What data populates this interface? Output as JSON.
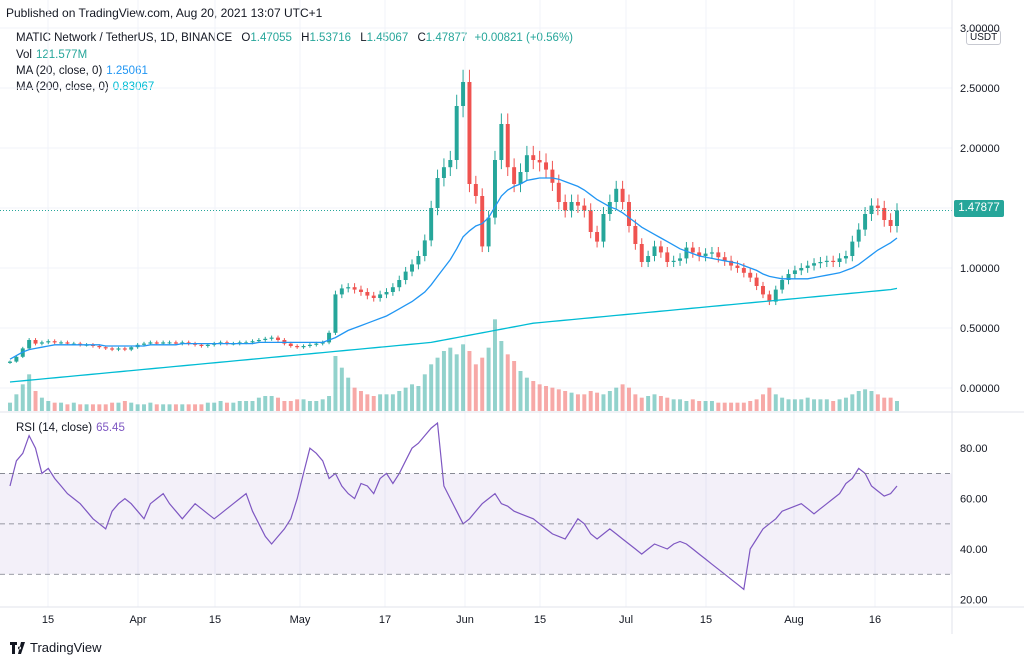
{
  "header": {
    "published": "Published on TradingView.com, Aug 20, 2021 13:07 UTC+1"
  },
  "legend": {
    "symbol": "MATIC Network / TetherUS, 1D, BINANCE",
    "open_label": "O",
    "open": "1.47055",
    "high_label": "H",
    "high": "1.53716",
    "low_label": "L",
    "low": "1.45067",
    "close_label": "C",
    "close": "1.47877",
    "change": "+0.00821 (+0.56%)",
    "vol_label": "Vol",
    "vol": "121.577M",
    "ma20_label": "MA (20, close, 0)",
    "ma20": "1.25061",
    "ma200_label": "MA (200, close, 0)",
    "ma200": "0.83067"
  },
  "rsi_legend": {
    "label": "RSI (14, close)",
    "value": "65.45"
  },
  "price_tag": "1.47877",
  "currency": "USDT",
  "footer": {
    "brand": "TradingView"
  },
  "colors": {
    "up": "#26a69a",
    "down": "#ef5350",
    "ma20": "#2196f3",
    "ma200": "#00bcd4",
    "rsi": "#7e57c2"
  },
  "chart_data": {
    "type": "line",
    "price_axis": {
      "ticks": [
        "3.00000",
        "2.50000",
        "2.00000",
        "1.50000",
        "1.00000",
        "0.50000",
        "0.00000"
      ],
      "range": [
        -0.2,
        3.0
      ]
    },
    "rsi_axis": {
      "ticks": [
        "80.00",
        "60.00",
        "40.00",
        "20.00"
      ],
      "range": [
        17,
        92
      ],
      "bands": [
        30,
        50,
        70
      ]
    },
    "x_labels": [
      "15",
      "Apr",
      "15",
      "May",
      "17",
      "Jun",
      "15",
      "Jul",
      "15",
      "Aug",
      "16"
    ],
    "candles_close": [
      0.22,
      0.26,
      0.33,
      0.4,
      0.37,
      0.38,
      0.39,
      0.38,
      0.38,
      0.37,
      0.37,
      0.36,
      0.36,
      0.35,
      0.34,
      0.33,
      0.32,
      0.33,
      0.32,
      0.34,
      0.36,
      0.37,
      0.38,
      0.37,
      0.38,
      0.38,
      0.37,
      0.38,
      0.37,
      0.36,
      0.35,
      0.36,
      0.37,
      0.38,
      0.37,
      0.37,
      0.38,
      0.38,
      0.39,
      0.4,
      0.41,
      0.42,
      0.4,
      0.37,
      0.35,
      0.34,
      0.35,
      0.36,
      0.37,
      0.38,
      0.46,
      0.78,
      0.83,
      0.84,
      0.82,
      0.8,
      0.77,
      0.75,
      0.78,
      0.8,
      0.84,
      0.9,
      0.97,
      1.03,
      1.1,
      1.23,
      1.5,
      1.75,
      1.84,
      1.9,
      2.35,
      2.55,
      1.7,
      1.6,
      1.18,
      1.42,
      1.9,
      2.2,
      1.84,
      1.7,
      1.8,
      1.94,
      1.9,
      1.88,
      1.82,
      1.71,
      1.55,
      1.48,
      1.55,
      1.52,
      1.48,
      1.3,
      1.22,
      1.45,
      1.55,
      1.66,
      1.55,
      1.35,
      1.2,
      1.05,
      1.1,
      1.18,
      1.13,
      1.05,
      1.06,
      1.08,
      1.17,
      1.13,
      1.1,
      1.12,
      1.13,
      1.09,
      1.06,
      1.02,
      1.0,
      0.96,
      0.92,
      0.85,
      0.78,
      0.72,
      0.82,
      0.9,
      0.95,
      0.98,
      1.0,
      1.02,
      1.04,
      1.05,
      1.06,
      1.05,
      1.08,
      1.1,
      1.22,
      1.32,
      1.45,
      1.52,
      1.5,
      1.4,
      1.35,
      1.48
    ],
    "ma20": [
      0.24,
      0.27,
      0.3,
      0.32,
      0.33,
      0.34,
      0.35,
      0.36,
      0.36,
      0.36,
      0.36,
      0.36,
      0.36,
      0.36,
      0.36,
      0.35,
      0.35,
      0.35,
      0.35,
      0.35,
      0.35,
      0.35,
      0.36,
      0.36,
      0.36,
      0.36,
      0.36,
      0.37,
      0.37,
      0.37,
      0.37,
      0.37,
      0.37,
      0.37,
      0.37,
      0.37,
      0.37,
      0.37,
      0.37,
      0.38,
      0.38,
      0.38,
      0.38,
      0.38,
      0.38,
      0.38,
      0.38,
      0.38,
      0.38,
      0.38,
      0.4,
      0.42,
      0.45,
      0.48,
      0.5,
      0.52,
      0.54,
      0.56,
      0.58,
      0.6,
      0.63,
      0.66,
      0.69,
      0.72,
      0.76,
      0.8,
      0.86,
      0.93,
      1.0,
      1.07,
      1.16,
      1.26,
      1.31,
      1.35,
      1.37,
      1.42,
      1.51,
      1.6,
      1.65,
      1.68,
      1.7,
      1.73,
      1.74,
      1.75,
      1.75,
      1.75,
      1.74,
      1.72,
      1.7,
      1.68,
      1.65,
      1.61,
      1.57,
      1.54,
      1.51,
      1.49,
      1.46,
      1.42,
      1.38,
      1.34,
      1.31,
      1.28,
      1.25,
      1.22,
      1.19,
      1.16,
      1.14,
      1.12,
      1.1,
      1.09,
      1.08,
      1.07,
      1.06,
      1.05,
      1.04,
      1.02,
      1.0,
      0.98,
      0.95,
      0.93,
      0.92,
      0.91,
      0.91,
      0.91,
      0.91,
      0.91,
      0.92,
      0.93,
      0.94,
      0.95,
      0.96,
      0.98,
      1.0,
      1.03,
      1.07,
      1.11,
      1.15,
      1.18,
      1.21,
      1.25
    ],
    "ma200": [
      0.05,
      0.055,
      0.06,
      0.065,
      0.07,
      0.075,
      0.08,
      0.085,
      0.09,
      0.095,
      0.1,
      0.105,
      0.11,
      0.115,
      0.12,
      0.125,
      0.13,
      0.135,
      0.14,
      0.145,
      0.15,
      0.155,
      0.16,
      0.165,
      0.17,
      0.175,
      0.18,
      0.185,
      0.19,
      0.195,
      0.2,
      0.205,
      0.21,
      0.215,
      0.22,
      0.225,
      0.23,
      0.235,
      0.24,
      0.245,
      0.25,
      0.255,
      0.26,
      0.265,
      0.27,
      0.275,
      0.28,
      0.285,
      0.29,
      0.295,
      0.3,
      0.305,
      0.31,
      0.315,
      0.32,
      0.325,
      0.33,
      0.335,
      0.34,
      0.345,
      0.35,
      0.355,
      0.36,
      0.365,
      0.37,
      0.375,
      0.38,
      0.39,
      0.4,
      0.41,
      0.42,
      0.43,
      0.44,
      0.45,
      0.46,
      0.47,
      0.48,
      0.49,
      0.5,
      0.51,
      0.52,
      0.53,
      0.54,
      0.545,
      0.55,
      0.555,
      0.56,
      0.565,
      0.57,
      0.575,
      0.58,
      0.585,
      0.59,
      0.595,
      0.6,
      0.605,
      0.61,
      0.615,
      0.62,
      0.625,
      0.63,
      0.635,
      0.64,
      0.645,
      0.65,
      0.655,
      0.66,
      0.665,
      0.67,
      0.675,
      0.68,
      0.685,
      0.69,
      0.695,
      0.7,
      0.705,
      0.71,
      0.715,
      0.72,
      0.725,
      0.73,
      0.735,
      0.74,
      0.745,
      0.75,
      0.755,
      0.76,
      0.765,
      0.77,
      0.775,
      0.78,
      0.785,
      0.79,
      0.795,
      0.8,
      0.805,
      0.81,
      0.815,
      0.82,
      0.83
    ],
    "rsi": [
      65,
      75,
      78,
      85,
      80,
      70,
      72,
      68,
      65,
      62,
      60,
      58,
      55,
      52,
      50,
      48,
      55,
      58,
      60,
      58,
      55,
      52,
      58,
      60,
      62,
      58,
      55,
      52,
      55,
      58,
      56,
      54,
      52,
      54,
      56,
      58,
      60,
      62,
      55,
      50,
      45,
      42,
      45,
      48,
      52,
      60,
      70,
      80,
      78,
      75,
      68,
      70,
      65,
      62,
      60,
      66,
      65,
      62,
      68,
      70,
      66,
      70,
      75,
      80,
      82,
      85,
      88,
      90,
      65,
      60,
      55,
      50,
      52,
      55,
      58,
      60,
      62,
      58,
      57,
      55,
      54,
      53,
      52,
      50,
      48,
      46,
      45,
      44,
      48,
      52,
      50,
      46,
      44,
      46,
      48,
      46,
      44,
      42,
      40,
      38,
      40,
      42,
      41,
      40,
      42,
      43,
      42,
      40,
      38,
      36,
      34,
      32,
      30,
      28,
      26,
      24,
      40,
      44,
      48,
      50,
      52,
      55,
      56,
      57,
      58,
      56,
      54,
      56,
      58,
      60,
      62,
      66,
      68,
      72,
      70,
      65,
      63,
      61,
      62,
      65
    ],
    "volume": [
      0.05,
      0.1,
      0.16,
      0.22,
      0.12,
      0.08,
      0.06,
      0.05,
      0.05,
      0.04,
      0.05,
      0.04,
      0.04,
      0.04,
      0.04,
      0.04,
      0.05,
      0.05,
      0.06,
      0.05,
      0.04,
      0.04,
      0.05,
      0.04,
      0.04,
      0.04,
      0.04,
      0.04,
      0.04,
      0.04,
      0.04,
      0.05,
      0.05,
      0.06,
      0.05,
      0.05,
      0.06,
      0.06,
      0.06,
      0.08,
      0.09,
      0.09,
      0.08,
      0.06,
      0.06,
      0.07,
      0.07,
      0.06,
      0.06,
      0.07,
      0.09,
      0.33,
      0.26,
      0.2,
      0.14,
      0.12,
      0.1,
      0.09,
      0.1,
      0.1,
      0.1,
      0.12,
      0.14,
      0.16,
      0.15,
      0.22,
      0.28,
      0.32,
      0.36,
      0.38,
      0.34,
      0.4,
      0.36,
      0.28,
      0.32,
      0.38,
      0.55,
      0.42,
      0.34,
      0.3,
      0.24,
      0.2,
      0.18,
      0.16,
      0.15,
      0.14,
      0.13,
      0.12,
      0.11,
      0.1,
      0.1,
      0.12,
      0.11,
      0.1,
      0.12,
      0.14,
      0.16,
      0.14,
      0.1,
      0.08,
      0.09,
      0.1,
      0.09,
      0.08,
      0.07,
      0.07,
      0.06,
      0.07,
      0.06,
      0.06,
      0.06,
      0.05,
      0.05,
      0.05,
      0.05,
      0.05,
      0.06,
      0.07,
      0.1,
      0.14,
      0.1,
      0.08,
      0.07,
      0.07,
      0.07,
      0.08,
      0.07,
      0.07,
      0.07,
      0.06,
      0.07,
      0.08,
      0.1,
      0.12,
      0.13,
      0.12,
      0.1,
      0.08,
      0.08,
      0.06
    ]
  }
}
